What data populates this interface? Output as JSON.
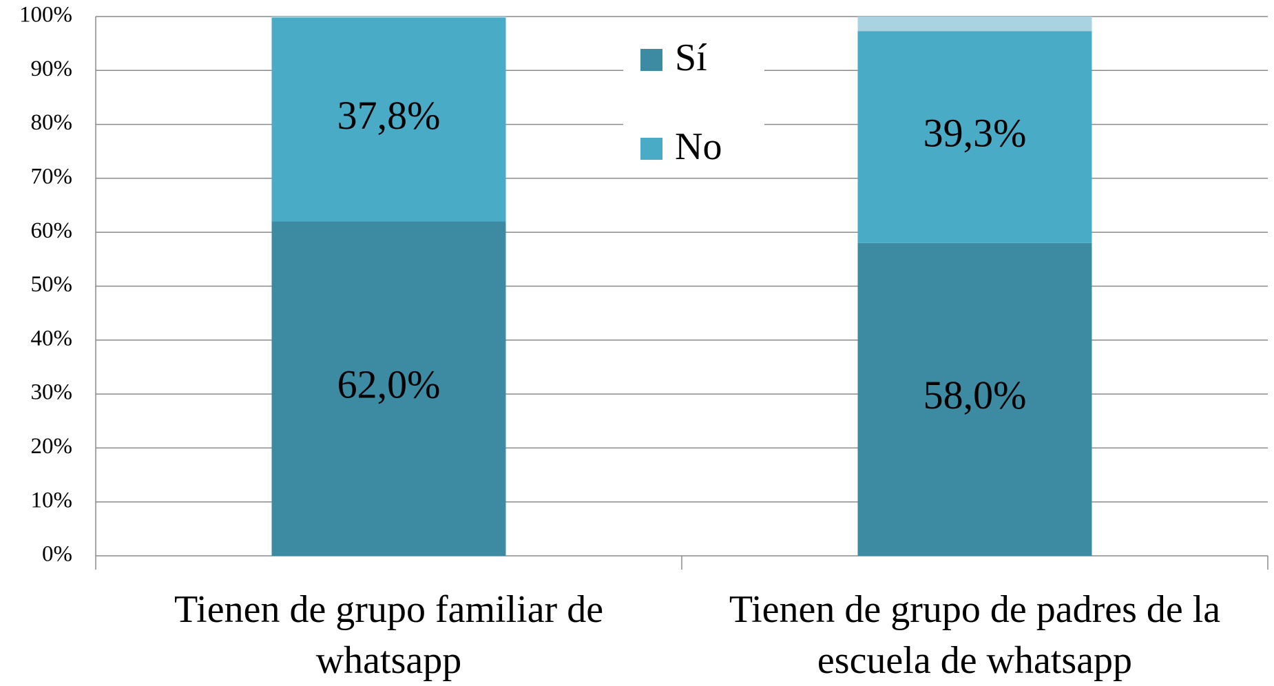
{
  "chart_data": {
    "type": "stacked_bar",
    "categories": [
      "Tienen de grupo familiar de whatsapp",
      "Tienen de grupo de padres de la escuela de whatsapp"
    ],
    "series": [
      {
        "name": "Sí",
        "color": "#3d8ba3",
        "values": [
          62.0,
          58.0
        ],
        "value_labels": [
          "62,0%",
          "58,0%"
        ]
      },
      {
        "name": "No",
        "color": "#4aabc6",
        "values": [
          37.8,
          39.3
        ],
        "value_labels": [
          "37,8%",
          "39,3%"
        ]
      },
      {
        "color": "#a9d3e0",
        "values": [
          0.2,
          2.7
        ]
      }
    ],
    "ylim": [
      0,
      100
    ],
    "yticks": [
      {
        "value": 0,
        "label": "0%"
      },
      {
        "value": 10,
        "label": "10%"
      },
      {
        "value": 20,
        "label": "20%"
      },
      {
        "value": 30,
        "label": "30%"
      },
      {
        "value": 40,
        "label": "40%"
      },
      {
        "value": 50,
        "label": "50%"
      },
      {
        "value": 60,
        "label": "60%"
      },
      {
        "value": 70,
        "label": "70%"
      },
      {
        "value": 80,
        "label": "80%"
      },
      {
        "value": 90,
        "label": "90%"
      },
      {
        "value": 100,
        "label": "100%"
      }
    ],
    "grid": true,
    "legend": "top"
  }
}
